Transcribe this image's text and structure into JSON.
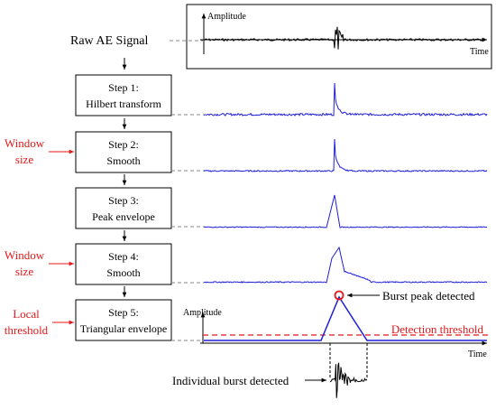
{
  "raw_signal": {
    "label": "Raw AE Signal",
    "axis_y_label": "Amplitude",
    "axis_x_label": "Time"
  },
  "steps": [
    {
      "title": "Step 1:",
      "name": "Hilbert transform"
    },
    {
      "title": "Step 2:",
      "name": "Smooth"
    },
    {
      "title": "Step 3:",
      "name": "Peak envelope"
    },
    {
      "title": "Step 4:",
      "name": "Smooth"
    },
    {
      "title": "Step 5:",
      "name": "Triangular envelope"
    }
  ],
  "side_labels": {
    "window_size_1": [
      "Window",
      "size"
    ],
    "window_size_2": [
      "Window",
      "size"
    ],
    "local_threshold": [
      "Local",
      "threshold"
    ]
  },
  "bottom_plot": {
    "axis_y_label": "Amplitude",
    "axis_x_label": "Time",
    "burst_peak_label": "Burst peak detected",
    "detection_threshold_label": "Detection threshold",
    "individual_burst_label": "Individual burst detected"
  },
  "colors": {
    "black": "#000000",
    "blue": "#1f1fd8",
    "red": "#e8181a",
    "gray": "#888888"
  }
}
